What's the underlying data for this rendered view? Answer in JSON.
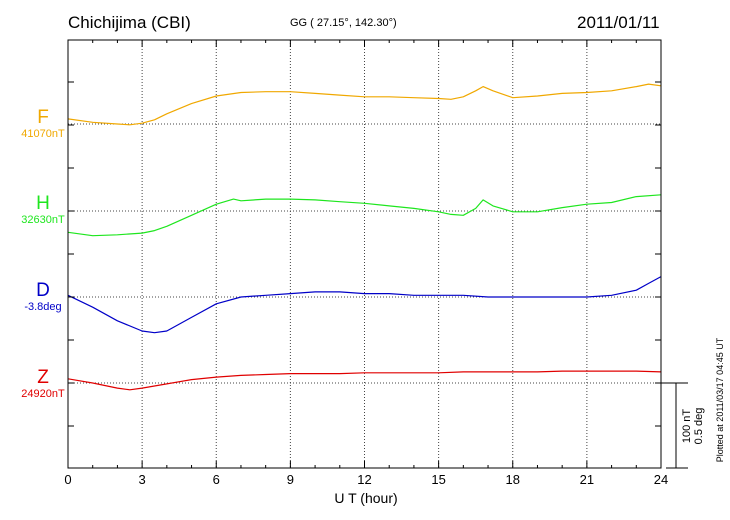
{
  "header": {
    "station": "Chichijima (CBI)",
    "coords": "GG ( 27.15°, 142.30°)",
    "date": "2011/01/11"
  },
  "footer": {
    "plotted": "Plotted at 2011/03/17 04:45 UT"
  },
  "colors": {
    "F": "#f0a800",
    "H": "#1ee61e",
    "D": "#0000c8",
    "Z": "#e00000"
  },
  "chart_data": {
    "type": "line",
    "xlabel": "U T (hour)",
    "xlim": [
      0,
      24
    ],
    "xticks": [
      0,
      3,
      6,
      9,
      12,
      15,
      18,
      21,
      24
    ],
    "xtick_labels": [
      "0",
      "3",
      "6",
      "9",
      "12",
      "15",
      "18",
      "21",
      "24"
    ],
    "grid": true,
    "scale_bar": {
      "nT_label": "100 nT",
      "deg_label": "0.5 deg",
      "nT": 100,
      "deg": 0.5
    },
    "series": [
      {
        "name": "F",
        "base_label": "41070nT",
        "base_value": 41070,
        "unit": "nT",
        "x": [
          0,
          1,
          2,
          2.5,
          3,
          3.5,
          4,
          5,
          6,
          7,
          8,
          9,
          10,
          11,
          12,
          13,
          14,
          15,
          15.5,
          16,
          16.5,
          16.8,
          17.2,
          18,
          19,
          20,
          21,
          22,
          23,
          23.5,
          24
        ],
        "values": [
          6,
          2,
          0,
          -1,
          1,
          5,
          12,
          24,
          33,
          37,
          38,
          38,
          36,
          34,
          32,
          32,
          31,
          30,
          29,
          32,
          39,
          44,
          39,
          31,
          33,
          36,
          37,
          39,
          44,
          47,
          45
        ]
      },
      {
        "name": "H",
        "base_label": "32630nT",
        "base_value": 32630,
        "unit": "nT",
        "x": [
          0,
          1,
          2,
          3,
          3.5,
          4,
          5,
          6,
          6.7,
          7,
          8,
          9,
          10,
          11,
          12,
          13,
          14,
          15,
          15.5,
          16,
          16.5,
          16.8,
          17.2,
          18,
          19,
          20,
          21,
          22,
          23,
          24
        ],
        "values": [
          -25,
          -29,
          -28,
          -26,
          -23,
          -18,
          -5,
          8,
          14,
          12,
          14,
          14,
          13,
          11,
          9,
          6,
          3,
          -1,
          -4,
          -5,
          3,
          13,
          6,
          -1,
          -1,
          4,
          8,
          10,
          17,
          19
        ]
      },
      {
        "name": "D",
        "base_label": "-3.8deg",
        "base_value": -3.8,
        "unit": "deg",
        "x": [
          0,
          1,
          2,
          3,
          3.5,
          4,
          5,
          6,
          7,
          8,
          9,
          10,
          11,
          12,
          13,
          14,
          15,
          16,
          17,
          18,
          19,
          20,
          21,
          22,
          23,
          23.5,
          24
        ],
        "values": [
          0.01,
          -0.06,
          -0.14,
          -0.2,
          -0.21,
          -0.2,
          -0.12,
          -0.04,
          0.0,
          0.01,
          0.02,
          0.03,
          0.03,
          0.02,
          0.02,
          0.01,
          0.01,
          0.01,
          0.0,
          0.0,
          0.0,
          0.0,
          0.0,
          0.01,
          0.04,
          0.08,
          0.12
        ]
      },
      {
        "name": "Z",
        "base_label": "24920nT",
        "base_value": 24920,
        "unit": "nT",
        "x": [
          0,
          1,
          2,
          2.5,
          3,
          4,
          5,
          6,
          7,
          8,
          9,
          10,
          11,
          12,
          13,
          14,
          15,
          16,
          17,
          18,
          19,
          20,
          21,
          22,
          23,
          24
        ],
        "values": [
          5,
          0,
          -6,
          -8,
          -6,
          -1,
          4,
          7,
          9,
          10,
          11,
          11,
          11,
          12,
          12,
          12,
          12,
          13,
          13,
          13,
          13,
          14,
          14,
          14,
          14,
          13
        ]
      }
    ]
  }
}
